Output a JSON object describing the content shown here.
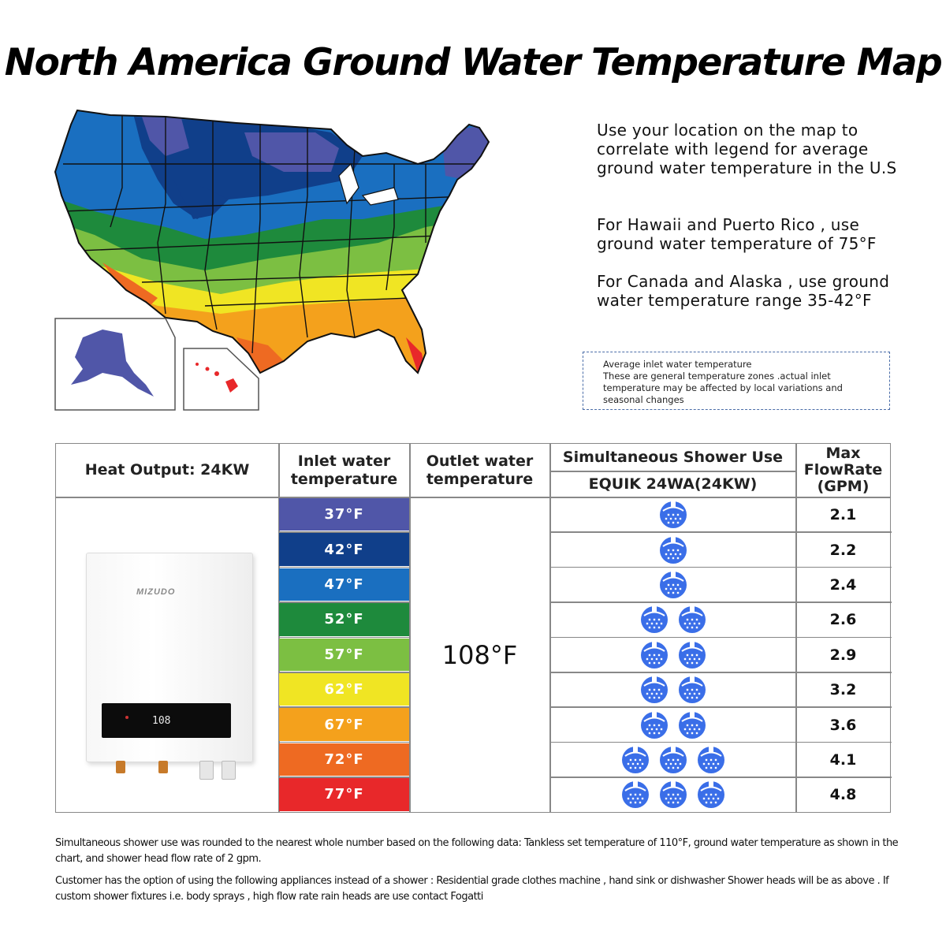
{
  "title": "North America Ground Water Temperature Map",
  "info": {
    "paragraph1": "Use your location on the map to correlate with legend for average ground water temperature in the U.S",
    "paragraph2": "For Hawaii and Puerto Rico , use ground water temperature of 75°F",
    "paragraph3": "For Canada and Alaska , use ground water temperature range 35-42°F"
  },
  "note": {
    "line1": "Average inlet water temperature",
    "line2": "These are general temperature zones .actual inlet temperature may be affected by local variations and seasonal changes"
  },
  "table": {
    "heat_output": "Heat Output: 24KW",
    "inlet_header": "Inlet water temperature",
    "outlet_header": "Outlet water temperature",
    "shower_header": "Simultaneous Shower Use",
    "model_header": "EQUIK 24WA(24KW)",
    "max_header": "Max FlowRate (GPM)",
    "outlet_value": "108°F",
    "heater_brand": "MIZUDO",
    "heater_display": "108",
    "rows": [
      {
        "temp": "37°F",
        "color": "#5056a8",
        "showers": 1,
        "gpm": "2.1"
      },
      {
        "temp": "42°F",
        "color": "#103f8a",
        "showers": 1,
        "gpm": "2.2"
      },
      {
        "temp": "47°F",
        "color": "#1a6fc0",
        "showers": 1,
        "gpm": "2.4"
      },
      {
        "temp": "52°F",
        "color": "#1e8a3c",
        "showers": 2,
        "gpm": "2.6"
      },
      {
        "temp": "57°F",
        "color": "#7cbf42",
        "showers": 2,
        "gpm": "2.9"
      },
      {
        "temp": "62°F",
        "color": "#f0e523",
        "showers": 2,
        "gpm": "3.2"
      },
      {
        "temp": "67°F",
        "color": "#f4a11c",
        "showers": 2,
        "gpm": "3.6"
      },
      {
        "temp": "72°F",
        "color": "#ee6a22",
        "showers": 3,
        "gpm": "4.1"
      },
      {
        "temp": "77°F",
        "color": "#e8282a",
        "showers": 3,
        "gpm": "4.8"
      }
    ]
  },
  "footer": {
    "line1": "Simultaneous shower use was rounded to the nearest whole number based on the following data: Tankless set temperature of 110°F, ground water temperature as shown in the chart, and shower head flow rate of 2 gpm.",
    "line2": "Customer has the option of using the following appliances instead of a shower : Residential grade clothes machine , hand sink or dishwasher Shower heads will be as above . If custom shower fixtures i.e. body sprays , high flow rate rain heads are use contact Fogatti"
  },
  "colors": {
    "border": "#888888",
    "shower_icon": "#3a6ee8",
    "note_border": "#4a6da8"
  }
}
